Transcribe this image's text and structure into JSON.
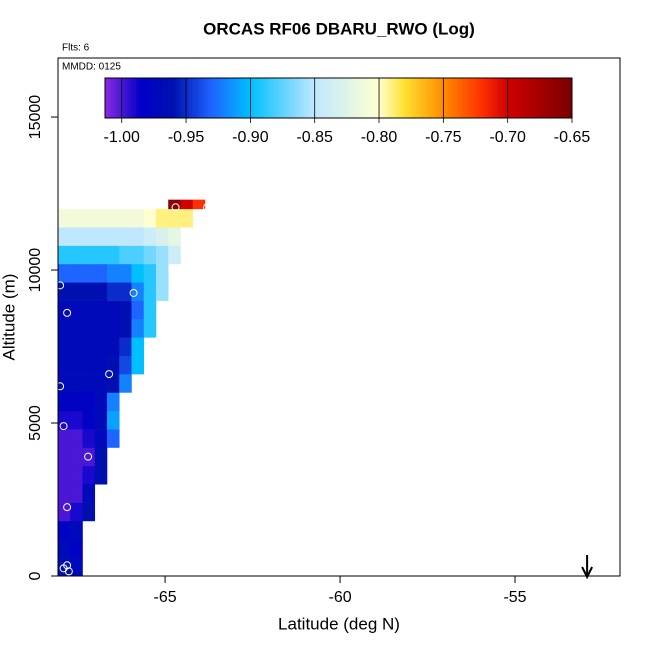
{
  "chart_data": {
    "type": "heatmap",
    "title": "ORCAS RF06 DBARU_RWO (Log)",
    "annotations": [
      "Flts: 6",
      "MMDD: 0125"
    ],
    "x_label": "Latitude (deg N)",
    "y_label": "Altitude (m)",
    "xlim": [
      -68.06,
      -52
    ],
    "ylim": [
      0,
      16930
    ],
    "xticks": [
      -65,
      -60,
      -55
    ],
    "yticks": [
      0,
      5000,
      10000,
      15000
    ],
    "lat_edges": [
      -68.06,
      -67.71,
      -67.36,
      -67.01,
      -66.66,
      -66.31,
      -65.96,
      -65.61,
      -65.26,
      -64.91,
      -64.56,
      -64.21,
      -63.86
    ],
    "alt_edges": [
      0,
      600,
      1200,
      1800,
      2400,
      3000,
      3600,
      4200,
      4800,
      5400,
      6000,
      6600,
      7200,
      7800,
      8400,
      9000,
      9600,
      10200,
      10800,
      11400,
      12000,
      12300
    ],
    "z": [
      [
        -0.96,
        -0.97,
        null,
        null,
        null,
        null,
        null,
        null,
        null,
        null,
        null,
        null
      ],
      [
        -0.97,
        -0.98,
        null,
        null,
        null,
        null,
        null,
        null,
        null,
        null,
        null,
        null
      ],
      [
        -0.98,
        -0.97,
        null,
        null,
        null,
        null,
        null,
        null,
        null,
        null,
        null,
        null
      ],
      [
        -1.0,
        -0.99,
        -0.96,
        null,
        null,
        null,
        null,
        null,
        null,
        null,
        null,
        null
      ],
      [
        -1.0,
        -1.0,
        -0.97,
        null,
        null,
        null,
        null,
        null,
        null,
        null,
        null,
        null
      ],
      [
        -1.0,
        -1.0,
        -0.99,
        -0.96,
        null,
        null,
        null,
        null,
        null,
        null,
        null,
        null
      ],
      [
        -1.0,
        -1.0,
        -1.0,
        -0.96,
        null,
        null,
        null,
        null,
        null,
        null,
        null,
        null
      ],
      [
        -1.0,
        -1.0,
        -0.99,
        -0.97,
        -0.93,
        null,
        null,
        null,
        null,
        null,
        null,
        null
      ],
      [
        -0.99,
        -0.99,
        -0.98,
        -0.97,
        -0.91,
        null,
        null,
        null,
        null,
        null,
        null,
        null
      ],
      [
        -0.98,
        -0.98,
        -0.98,
        -0.97,
        -0.92,
        null,
        null,
        null,
        null,
        null,
        null,
        null
      ],
      [
        -0.97,
        -0.97,
        -0.97,
        -0.97,
        -0.96,
        -0.92,
        null,
        null,
        null,
        null,
        null,
        null
      ],
      [
        -0.97,
        -0.97,
        -0.97,
        -0.97,
        -0.96,
        -0.94,
        -0.9,
        null,
        null,
        null,
        null,
        null
      ],
      [
        -0.97,
        -0.97,
        -0.97,
        -0.97,
        -0.97,
        -0.95,
        -0.9,
        null,
        null,
        null,
        null,
        null
      ],
      [
        -0.97,
        -0.97,
        -0.97,
        -0.97,
        -0.97,
        -0.96,
        -0.92,
        -0.89,
        null,
        null,
        null,
        null
      ],
      [
        -0.97,
        -0.97,
        -0.97,
        -0.97,
        -0.97,
        -0.96,
        -0.93,
        -0.89,
        null,
        null,
        null,
        null
      ],
      [
        -0.96,
        -0.96,
        -0.96,
        -0.96,
        -0.95,
        -0.95,
        -0.92,
        -0.89,
        -0.86,
        null,
        null,
        null
      ],
      [
        -0.93,
        -0.93,
        -0.93,
        -0.93,
        -0.92,
        -0.92,
        -0.9,
        -0.89,
        -0.86,
        null,
        null,
        null
      ],
      [
        -0.89,
        -0.89,
        -0.89,
        -0.89,
        -0.89,
        -0.88,
        -0.88,
        -0.87,
        -0.86,
        -0.84,
        null,
        null
      ],
      [
        -0.85,
        -0.85,
        -0.85,
        -0.85,
        -0.85,
        -0.85,
        -0.85,
        -0.84,
        -0.83,
        -0.82,
        null,
        null
      ],
      [
        -0.81,
        -0.81,
        -0.81,
        -0.81,
        -0.81,
        -0.81,
        -0.81,
        -0.8,
        -0.79,
        -0.79,
        -0.79,
        null
      ],
      [
        null,
        null,
        null,
        null,
        null,
        null,
        null,
        null,
        null,
        -0.66,
        -0.7,
        -0.72
      ]
    ],
    "points": {
      "x": [
        -68.0,
        -67.8,
        -68.0,
        -67.9,
        -67.8,
        -67.2,
        -66.6,
        -65.9,
        -67.8,
        -67.9,
        -67.75,
        -64.7,
        -63.8
      ],
      "y": [
        9500,
        8600,
        6200,
        4900,
        2250,
        3900,
        6600,
        9250,
        350,
        250,
        150,
        12050,
        12050
      ],
      "color": "#ffffff"
    },
    "arrow_lat": -52.94,
    "colorbar": {
      "lim": [
        -1.013,
        -0.65
      ],
      "ticks": [
        {
          "value": -1.0,
          "label": "-1.00"
        },
        {
          "value": -0.95,
          "label": "-0.95"
        },
        {
          "value": -0.9,
          "label": "-0.90"
        },
        {
          "value": -0.85,
          "label": "-0.85"
        },
        {
          "value": -0.8,
          "label": "-0.80"
        },
        {
          "value": -0.75,
          "label": "-0.75"
        },
        {
          "value": -0.7,
          "label": "-0.70"
        },
        {
          "value": -0.65,
          "label": "-0.65"
        }
      ],
      "stops": [
        [
          -1.013,
          "#8a2be2"
        ],
        [
          -0.985,
          "#0000c8"
        ],
        [
          -0.96,
          "#0010b0"
        ],
        [
          -0.93,
          "#1e64ff"
        ],
        [
          -0.9,
          "#00bfff"
        ],
        [
          -0.85,
          "#bfe8ff"
        ],
        [
          -0.8,
          "#ffffd0"
        ],
        [
          -0.78,
          "#ffe030"
        ],
        [
          -0.75,
          "#ff8c00"
        ],
        [
          -0.72,
          "#ff3000"
        ],
        [
          -0.7,
          "#d00000"
        ],
        [
          -0.65,
          "#7a0000"
        ]
      ]
    }
  }
}
